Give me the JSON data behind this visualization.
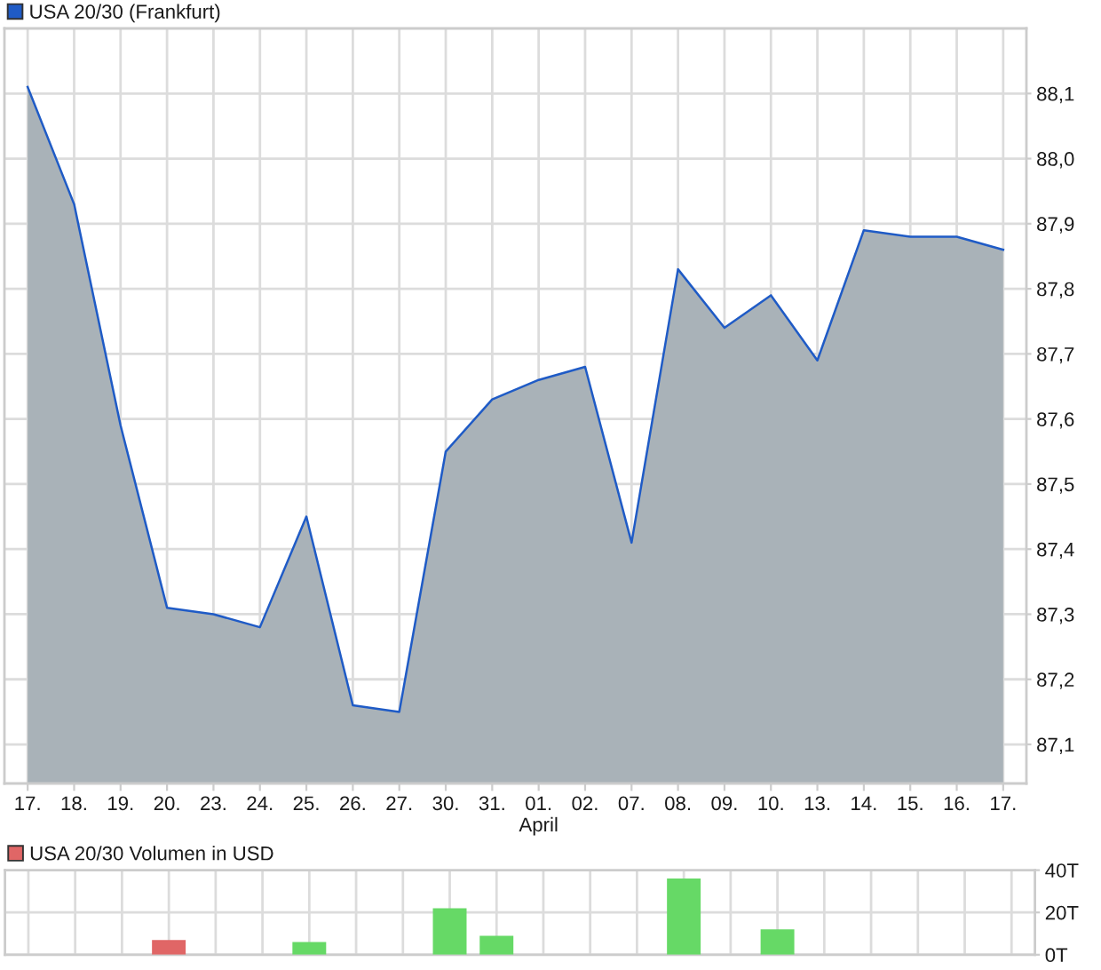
{
  "chart_data": [
    {
      "type": "area",
      "categories": [
        "17.",
        "18.",
        "19.",
        "20.",
        "23.",
        "24.",
        "25.",
        "26.",
        "27.",
        "30.",
        "31.",
        "01.\nApril",
        "02.",
        "07.",
        "08.",
        "09.",
        "10.",
        "13.",
        "14.",
        "15.",
        "16.",
        "17."
      ],
      "series": [
        {
          "name": "USA 20/30 (Frankfurt)",
          "color": "#1f5bc6",
          "values": [
            88.11,
            87.93,
            87.59,
            87.31,
            87.3,
            87.28,
            87.45,
            87.16,
            87.15,
            87.55,
            87.63,
            87.66,
            87.68,
            87.41,
            87.83,
            87.74,
            87.79,
            87.69,
            87.89,
            87.88,
            87.88,
            87.86
          ]
        }
      ],
      "ylim": [
        87.04,
        88.2
      ],
      "yticks": [
        {
          "value": 87.1,
          "label": "87,1"
        },
        {
          "value": 87.2,
          "label": "87,2"
        },
        {
          "value": 87.3,
          "label": "87,3"
        },
        {
          "value": 87.4,
          "label": "87,4"
        },
        {
          "value": 87.5,
          "label": "87,5"
        },
        {
          "value": 87.6,
          "label": "87,6"
        },
        {
          "value": 87.7,
          "label": "87,7"
        },
        {
          "value": 87.8,
          "label": "87,8"
        },
        {
          "value": 87.9,
          "label": "87,9"
        },
        {
          "value": 88.0,
          "label": "88,0"
        },
        {
          "value": 88.1,
          "label": "88,1"
        }
      ],
      "grid": true,
      "legend": "top left"
    },
    {
      "type": "bar",
      "categories": [
        null,
        null,
        null,
        null,
        null,
        null,
        null,
        null,
        null,
        null,
        null,
        null,
        null,
        null,
        null,
        null,
        null,
        null,
        null,
        null,
        null,
        null
      ],
      "series": [
        {
          "name": "USA 20/30 Volumen in USD",
          "color": "#e06666",
          "colors": [
            null,
            null,
            null,
            "#e06666",
            null,
            null,
            "#66d966",
            null,
            null,
            "#66d966",
            "#66d966",
            null,
            null,
            null,
            "#66d966",
            null,
            "#66d966",
            null,
            null,
            null,
            null,
            null
          ],
          "values": [
            null,
            null,
            null,
            7,
            null,
            null,
            6,
            null,
            null,
            22,
            9,
            null,
            null,
            null,
            36,
            null,
            12,
            null,
            null,
            null,
            null,
            null
          ]
        }
      ],
      "ylim": [
        0,
        40
      ],
      "yticks": [
        {
          "value": 0,
          "label": "0T"
        },
        {
          "value": 20,
          "label": "20T"
        },
        {
          "value": 40,
          "label": "40T"
        }
      ],
      "grid": true,
      "legend": "top left",
      "tick_labels": "y"
    }
  ]
}
